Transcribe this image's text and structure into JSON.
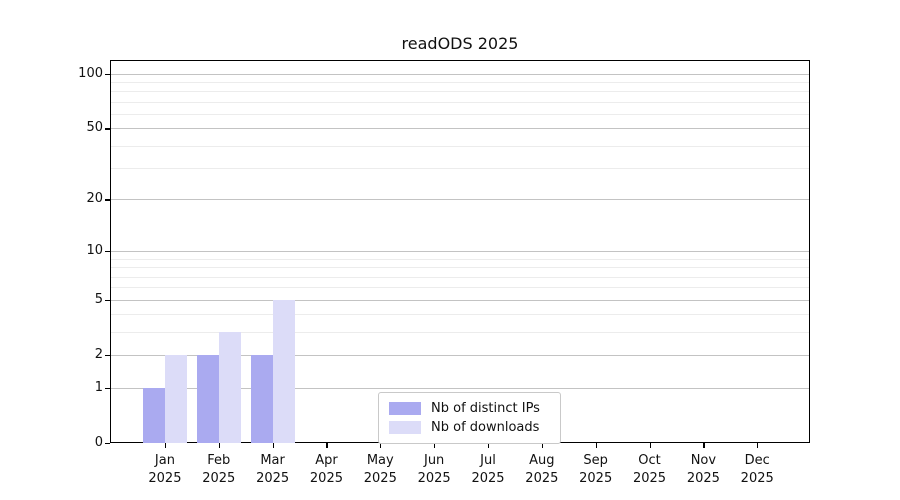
{
  "chart_data": {
    "type": "bar",
    "title": "readODS 2025",
    "categories": [
      "Jan",
      "Feb",
      "Mar",
      "Apr",
      "May",
      "Jun",
      "Jul",
      "Aug",
      "Sep",
      "Oct",
      "Nov",
      "Dec"
    ],
    "category_year": "2025",
    "series": [
      {
        "name": "Nb of distinct IPs",
        "color": "#aaaaf0",
        "values": [
          1,
          2,
          2,
          0,
          0,
          0,
          0,
          0,
          0,
          0,
          0,
          0
        ]
      },
      {
        "name": "Nb of downloads",
        "color": "#dcdcf8",
        "values": [
          2,
          3,
          5,
          0,
          0,
          0,
          0,
          0,
          0,
          0,
          0,
          0
        ]
      }
    ],
    "xlabel": "",
    "ylabel": "",
    "y_scale": "log1p",
    "ylim": [
      0,
      117
    ],
    "y_major_ticks": [
      100,
      50,
      20,
      10,
      5,
      2,
      1,
      0
    ],
    "y_minor_ticks": [
      3,
      4,
      6,
      7,
      8,
      9,
      30,
      40,
      60,
      70,
      80,
      90
    ],
    "grid": true,
    "legend_position": "lower center",
    "colors": {
      "axis": "#000000",
      "grid_major": "#c3c3c3",
      "grid_minor": "#ececec",
      "legend_border": "#c9c9c9",
      "text": "#111111",
      "background": "#ffffff"
    }
  }
}
